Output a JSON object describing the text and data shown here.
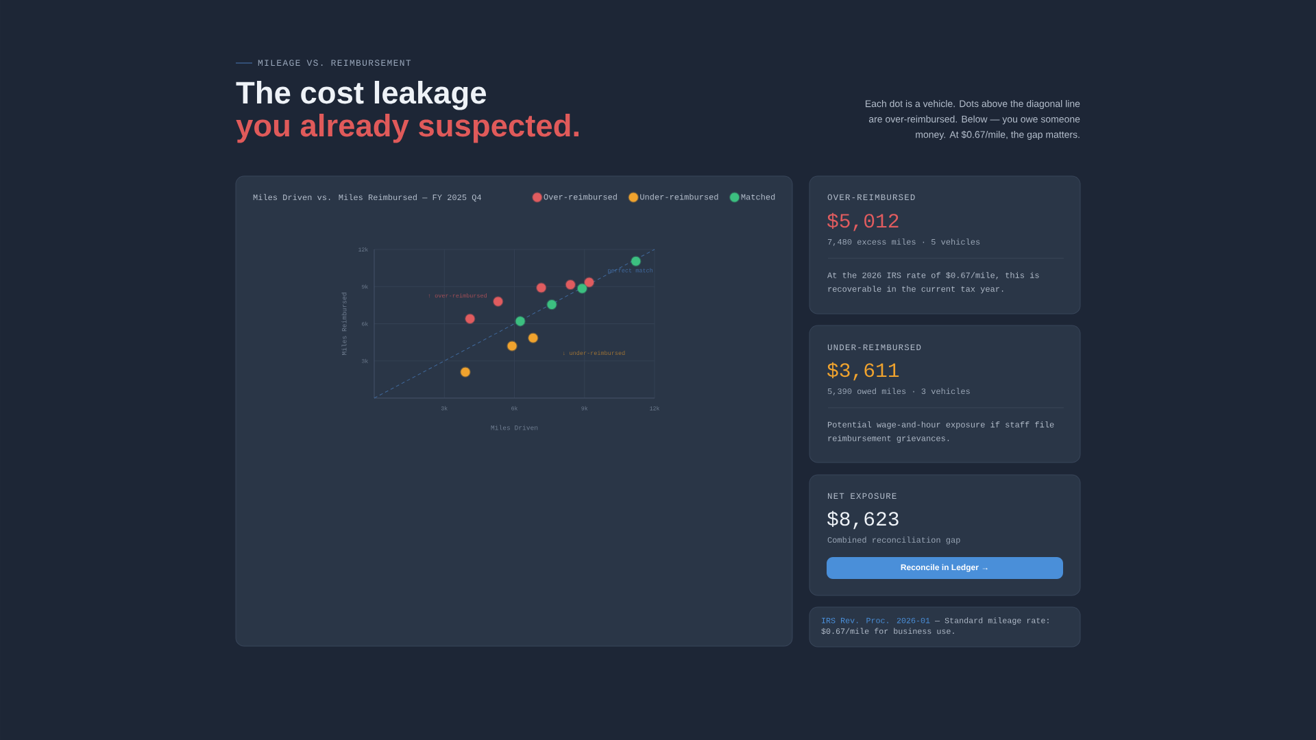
{
  "chart_data": {
    "type": "scatter",
    "title": "The cost leakage",
    "subtitle": "you already suspected.",
    "xlabel": "Miles Driven",
    "ylabel": "Miles Reimbursed",
    "xlim": [
      0,
      12000
    ],
    "ylim": [
      0,
      12000
    ],
    "xticks": [
      {
        "value": 3000,
        "label": "3k"
      },
      {
        "value": 6000,
        "label": "6k"
      },
      {
        "value": 9000,
        "label": "9k"
      },
      {
        "value": 12000,
        "label": "12k"
      }
    ],
    "yticks": [
      {
        "value": 3000,
        "label": "3k"
      },
      {
        "value": 6000,
        "label": "6k"
      },
      {
        "value": 9000,
        "label": "9k"
      },
      {
        "value": 12000,
        "label": "12k"
      }
    ],
    "grid": true,
    "legend": "top right",
    "marker": "circle",
    "series": [
      {
        "name": "perfect match",
        "type": "line",
        "color": "#416a9e",
        "line_style": "dashed",
        "marker": "none",
        "x": [
          0,
          12000
        ],
        "values": [
          0,
          12000
        ]
      },
      {
        "name": "Over-reimbursed",
        "color": "#e05c5f",
        "x": [
          4100,
          5300,
          7150,
          8400,
          9200
        ],
        "values": [
          6400,
          7800,
          8900,
          9150,
          9350
        ]
      },
      {
        "name": "Under-reimbursed",
        "color": "#f0a32e",
        "x": [
          3900,
          5900,
          6800
        ],
        "values": [
          2100,
          4200,
          4850
        ]
      },
      {
        "name": "Matched",
        "color": "#3cbf80",
        "x": [
          6250,
          7600,
          8900,
          11200
        ],
        "values": [
          6200,
          7550,
          8850,
          11050
        ]
      }
    ],
    "annotations": [
      "MILEAGE VS. REIMBURSEMENT",
      "Each dot is a vehicle. Dots above the diagonal line are over-reimbursed. Below — you owe someone money. At $0.67/mile, the gap matters.",
      "Miles Driven vs. Miles Reimbursed — FY 2025 Q4",
      "↑ over-reimbursed",
      "↓ under-reimbursed",
      "OVER-REIMBURSED",
      "$5,012",
      "7,480 excess miles · 5 vehicles",
      "At the 2026 IRS rate of $0.67/mile, this is recoverable in the current tax year.",
      "UNDER-REIMBURSED",
      "$3,611",
      "5,390 owed miles · 3 vehicles",
      "Potential wage-and-hour exposure if staff file reimbursement grievances.",
      "NET EXPOSURE",
      "$8,623",
      "Combined reconciliation gap",
      "Reconcile in Ledger →",
      "IRS Rev. Proc. 2026-01",
      "— Standard mileage rate: $0.67/mile for business use."
    ]
  }
}
